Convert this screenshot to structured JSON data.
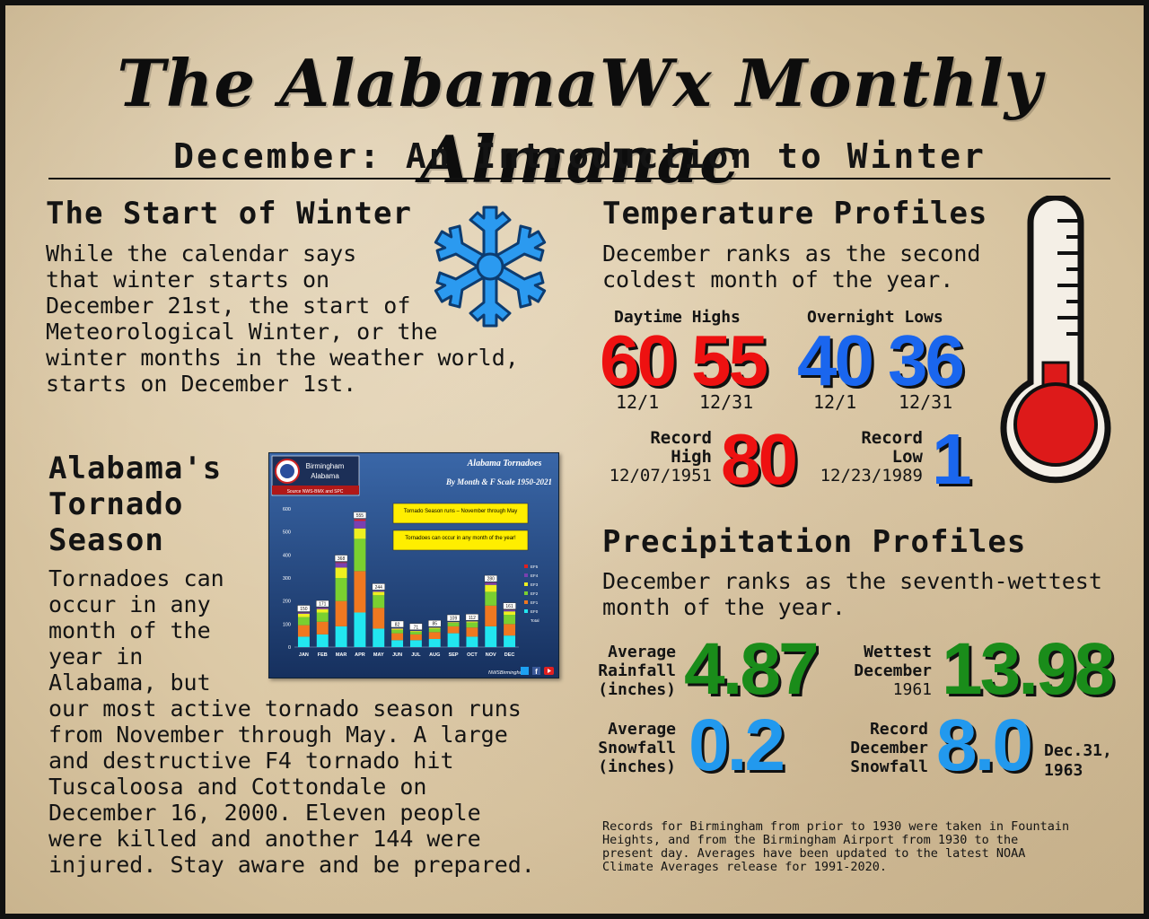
{
  "masthead": "The AlabamaWx Monthly Almanac",
  "subtitle": "December: An Introduction to Winter",
  "start_winter": {
    "heading": "The Start of Winter",
    "lines": [
      "While the calendar says",
      "that winter starts on",
      "December 21st, the start of",
      "Meteorological Winter, or the",
      "winter months in the weather world,",
      "starts on December 1st."
    ]
  },
  "tornado": {
    "heading_lines": [
      "Alabama's",
      "Tornado",
      "Season"
    ],
    "narrow_lines": [
      "Tornadoes can",
      "occur in any",
      "month of the",
      "year in",
      "Alabama, but"
    ],
    "wide_lines": [
      "our most active tornado season runs",
      "from November through May. A large",
      "and destructive F4 tornado hit",
      "Tuscaloosa and Cottondale on",
      "December 16, 2000. Eleven people",
      "were killed and another 144 were",
      "injured. Stay aware and be prepared."
    ]
  },
  "temperature": {
    "heading": "Temperature Profiles",
    "desc_lines": [
      "December ranks as the second",
      "coldest month of the year."
    ],
    "highs_label": "Daytime Highs",
    "lows_label": "Overnight Lows",
    "high_start": {
      "value": "60",
      "date": "12/1"
    },
    "high_end": {
      "value": "55",
      "date": "12/31"
    },
    "low_start": {
      "value": "40",
      "date": "12/1"
    },
    "low_end": {
      "value": "36",
      "date": "12/31"
    },
    "record_high": {
      "label_1": "Record",
      "label_2": "High",
      "date": "12/07/1951",
      "value": "80"
    },
    "record_low": {
      "label_1": "Record",
      "label_2": "Low",
      "date": "12/23/1989",
      "value": "1"
    }
  },
  "precip": {
    "heading": "Precipitation Profiles",
    "desc_lines": [
      "December ranks as the seventh-wettest",
      "month of the year."
    ],
    "avg_rain": {
      "label_lines": [
        "Average",
        "Rainfall",
        "(inches)"
      ],
      "value": "4.87"
    },
    "wettest": {
      "label_lines": [
        "Wettest",
        "December",
        "1961"
      ],
      "value": "13.98"
    },
    "avg_snow": {
      "label_lines": [
        "Average",
        "Snowfall",
        "(inches)"
      ],
      "value": "0.2"
    },
    "record_snow": {
      "label_lines": [
        "Record",
        "December",
        "Snowfall"
      ],
      "value": "8.0",
      "date_lines": [
        "Dec.31,",
        "1963"
      ]
    }
  },
  "footnote_lines": [
    "Records for Birmingham from prior to 1930 were taken in Fountain",
    "Heights, and from the Birmingham Airport from 1930 to the",
    "present day. Averages have been updated to the latest NOAA",
    "Climate Averages release for 1991-2020."
  ],
  "colors": {
    "red": "#ee1111",
    "blue": "#1a66ee",
    "light_blue": "#2299ee",
    "green": "#1a8c1a",
    "paper": "#dcc9a6"
  },
  "icons": [
    "snowflake-icon",
    "thermometer-icon",
    "nws-logo-icon",
    "twitter-icon",
    "facebook-icon",
    "youtube-icon"
  ],
  "chart_data": {
    "type": "bar",
    "title": "Alabama Tornadoes",
    "subtitle": "By Month & F Scale 1950-2021",
    "office_lines": [
      "Birmingham",
      "Alabama"
    ],
    "source": "Source NWS-BMX and SPC",
    "handle": "NWSBirmingham",
    "callout_1": "Tornado Season runs – November through May",
    "callout_2": "Tornadoes can occur in any month of the year!",
    "categories": [
      "JAN",
      "FEB",
      "MAR",
      "APR",
      "MAY",
      "JUN",
      "JUL",
      "AUG",
      "SEP",
      "OCT",
      "NOV",
      "DEC"
    ],
    "totals": [
      150,
      171,
      368,
      555,
      244,
      82,
      71,
      85,
      109,
      112,
      280,
      161
    ],
    "series": [
      {
        "name": "EF0",
        "color": "#22e6f0",
        "values": [
          45,
          55,
          90,
          150,
          80,
          30,
          30,
          35,
          60,
          45,
          90,
          50
        ]
      },
      {
        "name": "EF1",
        "color": "#f07820",
        "values": [
          50,
          55,
          110,
          180,
          90,
          30,
          25,
          30,
          30,
          40,
          90,
          50
        ]
      },
      {
        "name": "EF2",
        "color": "#7ad030",
        "values": [
          35,
          40,
          100,
          140,
          55,
          15,
          12,
          15,
          15,
          22,
          60,
          40
        ]
      },
      {
        "name": "EF3",
        "color": "#eef020",
        "values": [
          15,
          15,
          45,
          45,
          15,
          5,
          3,
          4,
          3,
          4,
          30,
          15
        ]
      },
      {
        "name": "EF4",
        "color": "#7a40b0",
        "values": [
          4,
          5,
          20,
          33,
          4,
          2,
          1,
          1,
          1,
          1,
          9,
          5
        ]
      },
      {
        "name": "EF5",
        "color": "#e02020",
        "values": [
          1,
          1,
          3,
          7,
          0,
          0,
          0,
          0,
          0,
          0,
          1,
          1
        ]
      }
    ],
    "legend_extra": "Total",
    "ylim": [
      0,
      600
    ],
    "yticks": [
      0,
      100,
      200,
      300,
      400,
      500,
      600
    ],
    "legend_position": "right",
    "grid": false
  }
}
